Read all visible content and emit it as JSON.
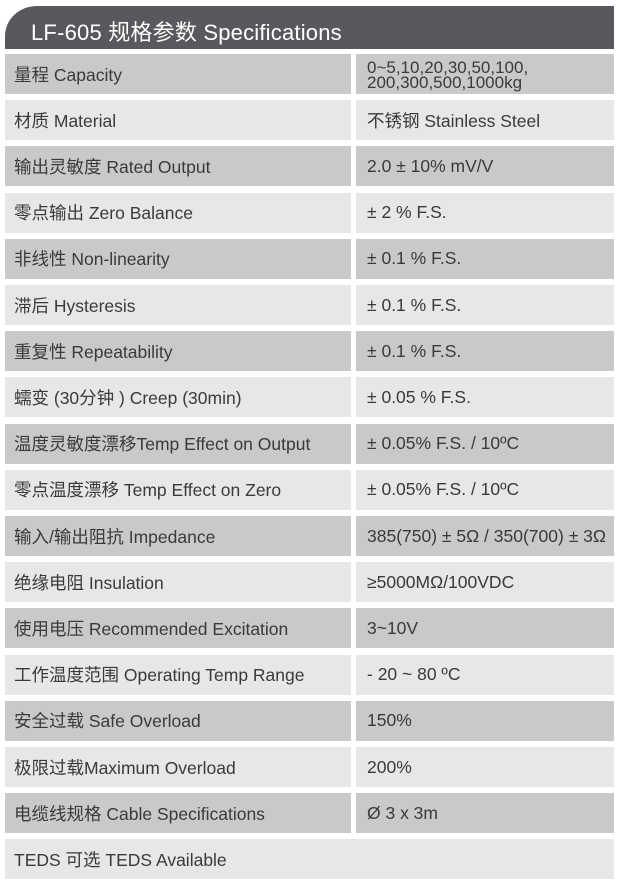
{
  "title": "LF-605 规格参数 Specifications",
  "colors": {
    "header": "#59585c",
    "row_dark": "#c9c9cb",
    "row_light": "#e7e7e8"
  },
  "rows": [
    {
      "label": "量程 Capacity",
      "value": "0~5,10,20,30,50,100,",
      "value2": "200,300,500,1000kg"
    },
    {
      "label": "材质 Material",
      "value": "不锈钢 Stainless Steel"
    },
    {
      "label": "输出灵敏度 Rated Output",
      "value": "2.0 ± 10% mV/V"
    },
    {
      "label": "零点输出  Zero Balance",
      "value": "± 2 % F.S."
    },
    {
      "label": "非线性 Non-linearity",
      "value": "± 0.1 % F.S."
    },
    {
      "label": "滞后 Hysteresis",
      "value": "± 0.1 % F.S."
    },
    {
      "label": "重复性 Repeatability",
      "value": "± 0.1 % F.S."
    },
    {
      "label": "蠕变 (30分钟 ) Creep (30min)",
      "value": "± 0.05 % F.S."
    },
    {
      "label": "温度灵敏度漂移Temp Effect on Output",
      "value": "± 0.05% F.S. / 10ºC"
    },
    {
      "label": "零点温度漂移 Temp Effect on Zero",
      "value": "± 0.05% F.S. / 10ºC"
    },
    {
      "label": "输入/输出阻抗 Impedance",
      "value": "385(750) ± 5Ω / 350(700) ± 3Ω"
    },
    {
      "label": "绝缘电阻  Insulation",
      "value": "≥5000MΩ/100VDC"
    },
    {
      "label": "使用电压 Recommended Excitation",
      "value": "3~10V"
    },
    {
      "label": "工作温度范围 Operating Temp  Range",
      "value": "- 20 ~ 80 ºC"
    },
    {
      "label": "安全过载 Safe Overload",
      "value": "150%"
    },
    {
      "label": "极限过载Maximum Overload",
      "value": "200%"
    },
    {
      "label": "电缆线规格 Cable Specifications",
      "value": "Ø 3 x 3m"
    },
    {
      "label": "TEDS 可选 TEDS Available"
    }
  ]
}
